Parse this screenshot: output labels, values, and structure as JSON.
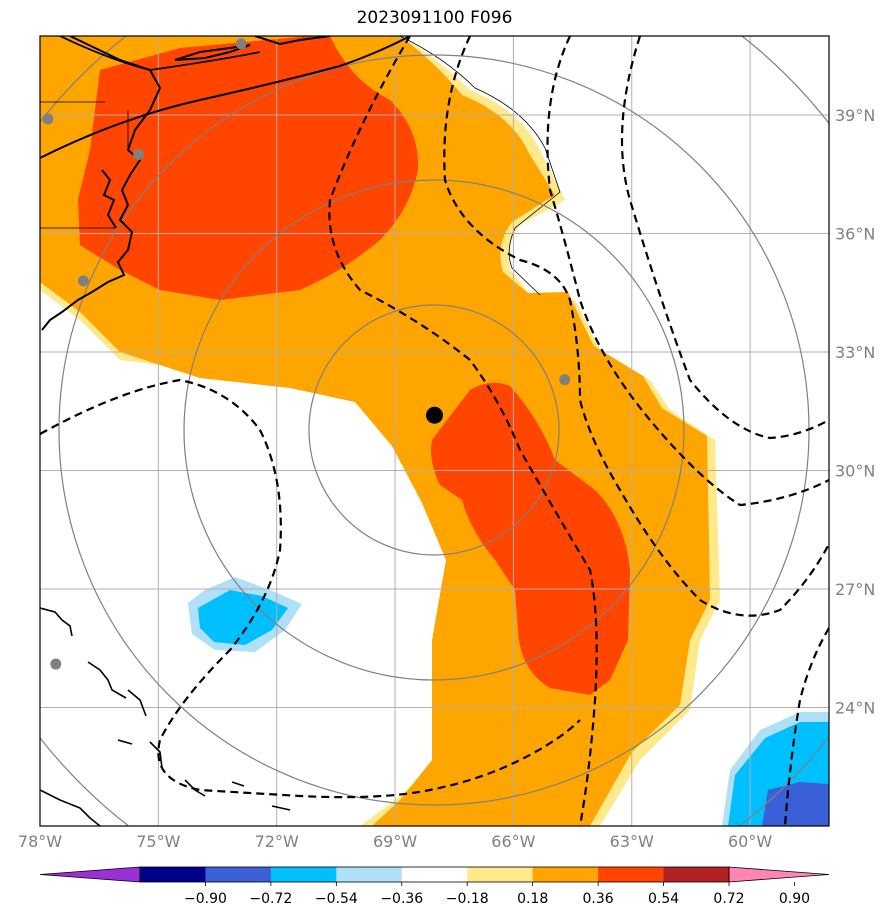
{
  "title": "2023091100 F096",
  "map": {
    "extent": {
      "lon": [
        -78,
        -58
      ],
      "lat": [
        21,
        41
      ]
    },
    "lon_ticks": [
      {
        "value": -78,
        "label": "78°W"
      },
      {
        "value": -75,
        "label": "75°W"
      },
      {
        "value": -72,
        "label": "72°W"
      },
      {
        "value": -69,
        "label": "69°W"
      },
      {
        "value": -66,
        "label": "66°W"
      },
      {
        "value": -63,
        "label": "63°W"
      },
      {
        "value": -60,
        "label": "60°W"
      }
    ],
    "lat_ticks": [
      {
        "value": 24,
        "label": "24°N"
      },
      {
        "value": 27,
        "label": "27°N"
      },
      {
        "value": 30,
        "label": "30°N"
      },
      {
        "value": 33,
        "label": "33°N"
      },
      {
        "value": 36,
        "label": "36°N"
      },
      {
        "value": 39,
        "label": "39°N"
      }
    ],
    "gridlines": true,
    "storm_center": {
      "lon": -68.0,
      "lat": 31.4
    },
    "range_rings_center": {
      "lon": -68.0,
      "lat": 31.4
    },
    "stations": [
      {
        "lon": -77.8,
        "lat": 38.9
      },
      {
        "lon": -75.5,
        "lat": 38.0
      },
      {
        "lon": -72.9,
        "lat": 40.8
      },
      {
        "lon": -76.9,
        "lat": 34.8
      },
      {
        "lon": -64.7,
        "lat": 32.3
      },
      {
        "lon": -77.6,
        "lat": 25.1
      }
    ]
  },
  "colorbar": {
    "ticks": [
      "−0.90",
      "−0.72",
      "−0.54",
      "−0.36",
      "−0.18",
      "0.18",
      "0.36",
      "0.54",
      "0.72",
      "0.90"
    ],
    "colors": [
      "#9b30d9",
      "#00008b",
      "#3b5fd6",
      "#00bfff",
      "#b0e0f8",
      "#ffffff",
      "#ffe98a",
      "#ffa500",
      "#ff4500",
      "#b22222",
      "#ff85b3"
    ]
  },
  "colors": {
    "light_yellow": "#ffe98a",
    "orange": "#ffa500",
    "red_orange": "#ff4500",
    "light_blue": "#b0e0f8",
    "sky_blue": "#00bfff",
    "royal_blue": "#3b5fd6",
    "grid": "#b0b0b0",
    "ring": "#808080",
    "station": "#808080"
  }
}
